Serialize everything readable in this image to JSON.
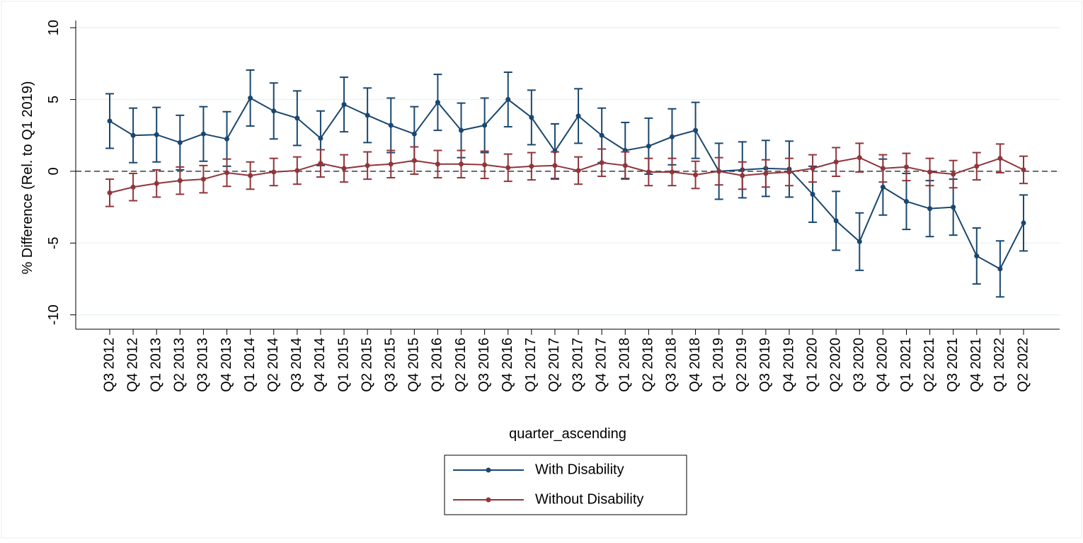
{
  "chart_data": {
    "type": "line",
    "y_label": "% Difference (Rel. to Q1 2019)",
    "x_label": "quarter_ascending",
    "categories": [
      "Q3 2012",
      "Q4 2012",
      "Q1 2013",
      "Q2 2013",
      "Q3 2013",
      "Q4 2013",
      "Q1 2014",
      "Q2 2014",
      "Q3 2014",
      "Q4 2014",
      "Q1 2015",
      "Q2 2015",
      "Q3 2015",
      "Q4 2015",
      "Q1 2016",
      "Q2 2016",
      "Q3 2016",
      "Q4 2016",
      "Q1 2017",
      "Q2 2017",
      "Q3 2017",
      "Q4 2017",
      "Q1 2018",
      "Q2 2018",
      "Q3 2018",
      "Q4 2018",
      "Q1 2019",
      "Q2 2019",
      "Q3 2019",
      "Q4 2019",
      "Q1 2020",
      "Q2 2020",
      "Q3 2020",
      "Q4 2020",
      "Q1 2021",
      "Q2 2021",
      "Q3 2021",
      "Q4 2021",
      "Q1 2022",
      "Q2 2022"
    ],
    "series": [
      {
        "name": "With Disability",
        "color": "#1a476f",
        "values": [
          3.5,
          2.5,
          2.55,
          2.0,
          2.6,
          2.25,
          5.1,
          4.2,
          3.7,
          2.3,
          4.65,
          3.9,
          3.2,
          2.6,
          4.8,
          2.85,
          3.2,
          5.0,
          3.75,
          1.4,
          3.85,
          2.5,
          1.45,
          1.75,
          2.4,
          2.85,
          0,
          0.1,
          0.2,
          0.15,
          -1.6,
          -3.45,
          -4.9,
          -1.1,
          -2.1,
          -2.6,
          -2.5,
          -5.9,
          -6.8,
          -3.6
        ],
        "errors": [
          1.9,
          1.9,
          1.9,
          1.9,
          1.9,
          1.9,
          1.95,
          1.95,
          1.9,
          1.9,
          1.9,
          1.9,
          1.9,
          1.9,
          1.95,
          1.9,
          1.9,
          1.9,
          1.9,
          1.9,
          1.9,
          1.9,
          1.95,
          1.95,
          1.95,
          1.95,
          1.95,
          1.95,
          1.95,
          1.95,
          1.95,
          2.05,
          2.0,
          1.95,
          1.95,
          1.95,
          1.95,
          1.95,
          1.95,
          1.95
        ]
      },
      {
        "name": "Without Disability",
        "color": "#90353b",
        "values": [
          -1.5,
          -1.1,
          -0.85,
          -0.65,
          -0.55,
          -0.1,
          -0.3,
          -0.05,
          0.05,
          0.55,
          0.2,
          0.4,
          0.5,
          0.75,
          0.5,
          0.5,
          0.45,
          0.25,
          0.35,
          0.4,
          0.05,
          0.6,
          0.4,
          -0.05,
          -0.05,
          -0.25,
          0,
          -0.3,
          -0.15,
          -0.05,
          0.2,
          0.65,
          0.95,
          0.2,
          0.3,
          -0.05,
          -0.2,
          0.35,
          0.9,
          0.1
        ],
        "errors": [
          0.95,
          0.95,
          0.95,
          0.95,
          0.95,
          0.95,
          0.95,
          0.95,
          0.95,
          0.95,
          0.95,
          0.95,
          0.95,
          0.95,
          0.95,
          0.95,
          0.95,
          0.95,
          0.95,
          0.95,
          0.95,
          0.95,
          0.95,
          0.95,
          0.95,
          0.95,
          0.95,
          0.95,
          0.95,
          0.95,
          0.95,
          1.0,
          1.0,
          0.95,
          0.95,
          0.95,
          0.95,
          0.95,
          1.0,
          0.95
        ]
      }
    ],
    "ylim": [
      -11,
      10.5
    ],
    "yticks": [
      -10,
      -5,
      0,
      5,
      10
    ],
    "reference_line": 0,
    "grid": true,
    "legend": "bottom"
  }
}
